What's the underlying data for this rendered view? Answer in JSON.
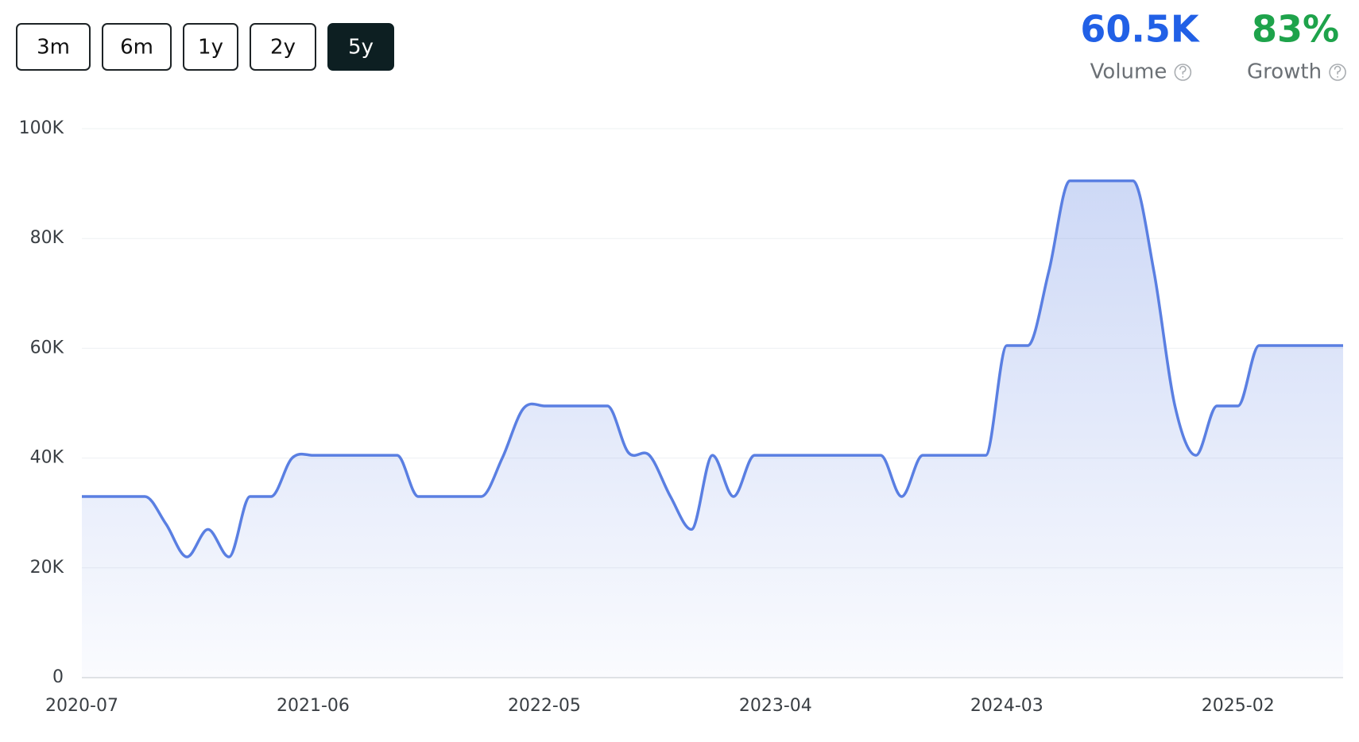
{
  "controls": {
    "ranges": [
      "3m",
      "6m",
      "1y",
      "2y",
      "5y"
    ],
    "active_index": 4
  },
  "stats": [
    {
      "value": "60.5K",
      "label": "Volume",
      "color": "#2160e6"
    },
    {
      "value": "83%",
      "label": "Growth",
      "color": "#1ea34b"
    }
  ],
  "chart_data": {
    "type": "line",
    "color": "#5a7fe2",
    "area": true,
    "grid": true,
    "categories": [
      "2020-07",
      null,
      null,
      null,
      null,
      null,
      null,
      null,
      null,
      null,
      null,
      "2021-06",
      null,
      null,
      null,
      null,
      null,
      null,
      null,
      null,
      null,
      null,
      "2022-05",
      null,
      null,
      null,
      null,
      null,
      null,
      null,
      null,
      null,
      null,
      "2023-04",
      null,
      null,
      null,
      null,
      null,
      null,
      null,
      null,
      null,
      null,
      "2024-03",
      null,
      null,
      null,
      null,
      null,
      null,
      null,
      null,
      null,
      null,
      "2025-02",
      null,
      null,
      null,
      null,
      null
    ],
    "values": [
      33000,
      33000,
      33000,
      33000,
      28000,
      22000,
      27000,
      22000,
      33000,
      33000,
      40000,
      40500,
      40500,
      40500,
      40500,
      40500,
      33000,
      33000,
      33000,
      33000,
      40000,
      49000,
      49500,
      49500,
      49500,
      49500,
      41000,
      40500,
      33000,
      27000,
      40500,
      33000,
      40500,
      40500,
      40500,
      40500,
      40500,
      40500,
      40500,
      33000,
      40500,
      40500,
      40500,
      40500,
      60500,
      60500,
      74000,
      90500,
      90500,
      90500,
      90500,
      74000,
      49500,
      40500,
      49500,
      49500,
      60500,
      60500,
      60500,
      60500,
      60500
    ],
    "ylim": [
      0,
      100000
    ],
    "yticks": [
      0,
      {
        "value": 20000,
        "label": "20K"
      },
      {
        "value": 40000,
        "label": "40K"
      },
      {
        "value": 60000,
        "label": "60K"
      },
      {
        "value": 80000,
        "label": "80K"
      },
      {
        "value": 100000,
        "label": "100K"
      }
    ]
  }
}
